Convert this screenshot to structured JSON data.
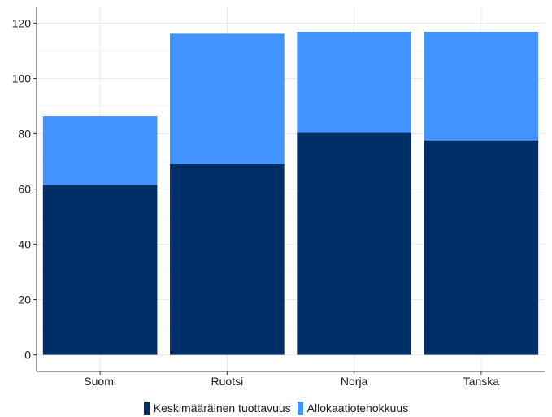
{
  "chart_data": {
    "type": "bar",
    "stacked": true,
    "categories": [
      "Suomi",
      "Ruotsi",
      "Norja",
      "Tanska"
    ],
    "series": [
      {
        "name": "Keskimääräinen tuottavuus",
        "color": "#002f67",
        "values": [
          61.5,
          69.0,
          80.3,
          77.6
        ]
      },
      {
        "name": "Allokaatiotehokkuus",
        "color": "#4194ff",
        "values": [
          24.8,
          47.2,
          36.6,
          39.3
        ]
      }
    ],
    "y_ticks": [
      "0",
      "20",
      "40",
      "60",
      "80",
      "100",
      "120"
    ],
    "ylim": [
      -6,
      126
    ],
    "grid": true,
    "legend_position": "bottom"
  }
}
